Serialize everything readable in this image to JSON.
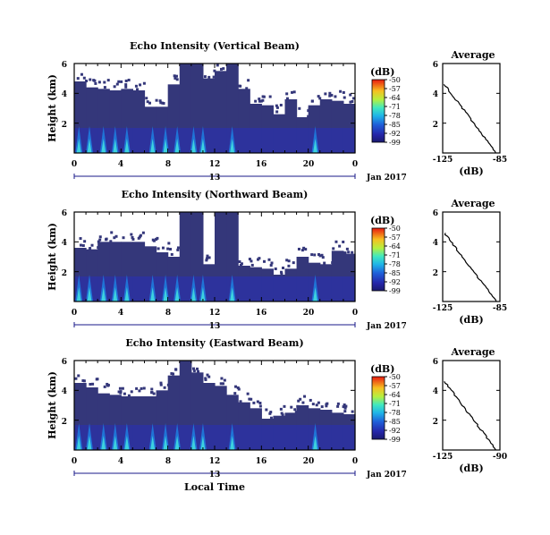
{
  "chart_data": [
    {
      "type": "heatmap",
      "title": "Echo Intensity (Vertical Beam)",
      "ylabel": "Height (km)",
      "xlabel": "",
      "x_ticks": [
        "0",
        "4",
        "8",
        "12",
        "16",
        "20",
        "0"
      ],
      "y_ticks": [
        "6",
        "4",
        "2"
      ],
      "date_day": "13",
      "date_label": "Jan 2017",
      "colorbar": {
        "unit": "(dB)",
        "ticks": [
          "-50",
          "-57",
          "-64",
          "-71",
          "-78",
          "-85",
          "-92",
          "-99"
        ]
      },
      "average": {
        "title": "Average",
        "xlabel": "(dB)",
        "x_ticks": [
          "-125",
          "-85"
        ],
        "y_ticks": [
          "6",
          "4",
          "2"
        ]
      },
      "echo_top_km": [
        4.8,
        4.4,
        4.3,
        4.2,
        4.3,
        4.2,
        3.1,
        3.1,
        4.6,
        6.0,
        6.0,
        5.0,
        5.5,
        6.0,
        4.3,
        3.3,
        3.2,
        2.6,
        3.6,
        2.4,
        3.2,
        3.6,
        3.5,
        3.3
      ]
    },
    {
      "type": "heatmap",
      "title": "Echo Intensity (Northward Beam)",
      "ylabel": "Height (km)",
      "xlabel": "",
      "x_ticks": [
        "0",
        "4",
        "8",
        "12",
        "16",
        "20",
        "0"
      ],
      "y_ticks": [
        "6",
        "4",
        "2"
      ],
      "date_day": "13",
      "date_label": "Jan 2017",
      "colorbar": {
        "unit": "(dB)",
        "ticks": [
          "-50",
          "-57",
          "-64",
          "-71",
          "-78",
          "-85",
          "-92",
          "-99"
        ]
      },
      "average": {
        "title": "Average",
        "xlabel": "(dB)",
        "x_ticks": [
          "-125",
          "-85"
        ],
        "y_ticks": [
          "6",
          "4",
          "2"
        ]
      },
      "echo_top_km": [
        3.6,
        3.5,
        4.0,
        4.0,
        4.0,
        4.0,
        3.7,
        3.3,
        3.0,
        6.0,
        6.0,
        2.5,
        6.0,
        6.0,
        2.4,
        2.3,
        2.2,
        1.8,
        2.2,
        3.0,
        2.6,
        2.5,
        3.4,
        3.2
      ]
    },
    {
      "type": "heatmap",
      "title": "Echo Intensity (Eastward Beam)",
      "ylabel": "Height (km)",
      "xlabel": "Local Time",
      "x_ticks": [
        "0",
        "4",
        "8",
        "12",
        "16",
        "20",
        "0"
      ],
      "y_ticks": [
        "6",
        "4",
        "2"
      ],
      "date_day": "13",
      "date_label": "Jan 2017",
      "colorbar": {
        "unit": "(dB)",
        "ticks": [
          "-50",
          "-57",
          "-64",
          "-71",
          "-78",
          "-85",
          "-92",
          "-99"
        ]
      },
      "average": {
        "title": "Average",
        "xlabel": "(dB)",
        "x_ticks": [
          "-125",
          "-90"
        ],
        "y_ticks": [
          "6",
          "4",
          "2"
        ]
      },
      "echo_top_km": [
        4.5,
        4.2,
        3.8,
        3.7,
        3.6,
        3.6,
        3.6,
        4.0,
        5.0,
        6.0,
        5.2,
        4.5,
        4.3,
        3.7,
        3.2,
        2.8,
        2.1,
        2.3,
        2.5,
        3.0,
        2.8,
        2.7,
        2.5,
        2.4
      ]
    }
  ]
}
